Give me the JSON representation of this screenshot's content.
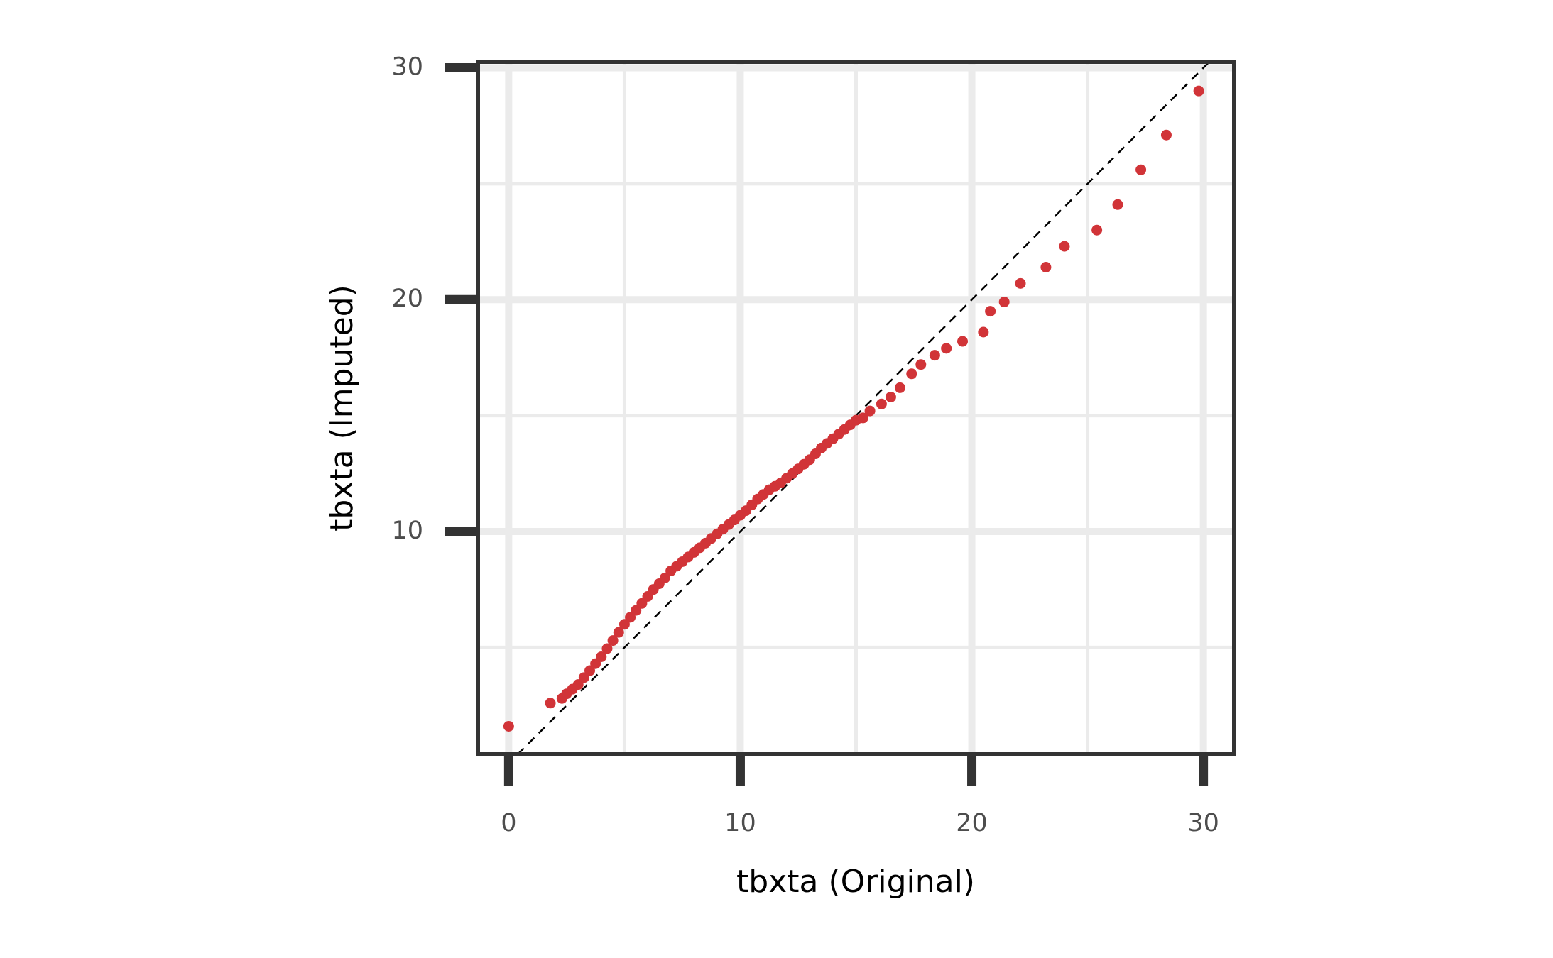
{
  "chart_data": {
    "type": "scatter",
    "xlabel": "tbxta (Original)",
    "ylabel": "tbxta (Imputed)",
    "x": [
      0,
      1.8,
      2.3,
      2.5,
      2.75,
      3.0,
      3.25,
      3.5,
      3.75,
      4.0,
      4.25,
      4.5,
      4.75,
      5.0,
      5.25,
      5.5,
      5.75,
      6.0,
      6.25,
      6.5,
      6.75,
      7.0,
      7.25,
      7.5,
      7.75,
      8.0,
      8.25,
      8.5,
      8.75,
      9.0,
      9.25,
      9.5,
      9.75,
      10.0,
      10.25,
      10.5,
      10.75,
      11.0,
      11.25,
      11.5,
      11.75,
      12.0,
      12.25,
      12.5,
      12.75,
      13.0,
      13.25,
      13.5,
      13.75,
      14.0,
      14.25,
      14.5,
      14.75,
      15.0,
      15.3,
      15.6,
      16.1,
      16.5,
      16.9,
      17.4,
      17.8,
      18.4,
      18.9,
      19.6,
      20.5,
      20.8,
      21.4,
      22.1,
      23.2,
      24.0,
      25.4,
      26.3,
      27.3,
      28.4,
      29.8
    ],
    "values": [
      1.6,
      2.6,
      2.8,
      3.0,
      3.2,
      3.4,
      3.7,
      4.0,
      4.3,
      4.6,
      4.95,
      5.3,
      5.65,
      6.0,
      6.3,
      6.6,
      6.9,
      7.2,
      7.5,
      7.75,
      8.0,
      8.3,
      8.5,
      8.7,
      8.9,
      9.1,
      9.3,
      9.5,
      9.7,
      9.9,
      10.1,
      10.3,
      10.5,
      10.7,
      10.9,
      11.15,
      11.4,
      11.6,
      11.8,
      11.95,
      12.1,
      12.3,
      12.5,
      12.7,
      12.9,
      13.1,
      13.35,
      13.6,
      13.8,
      14.0,
      14.2,
      14.4,
      14.6,
      14.8,
      14.9,
      15.2,
      15.5,
      15.8,
      16.2,
      16.8,
      17.2,
      17.6,
      17.9,
      18.2,
      18.6,
      19.5,
      19.9,
      20.7,
      21.4,
      22.3,
      23.0,
      24.1,
      25.6,
      27.1,
      29.0
    ],
    "color": "#d13438",
    "xlim": [
      -1.33,
      31.33
    ],
    "ylim": [
      0.39,
      30.26
    ],
    "xticks": [
      0,
      10,
      20,
      30
    ],
    "yticks": [
      10,
      20,
      30
    ],
    "minor_xticks": [
      5,
      15,
      25
    ],
    "minor_yticks": [
      5,
      15,
      25
    ],
    "grid": true,
    "reference_line": true
  }
}
